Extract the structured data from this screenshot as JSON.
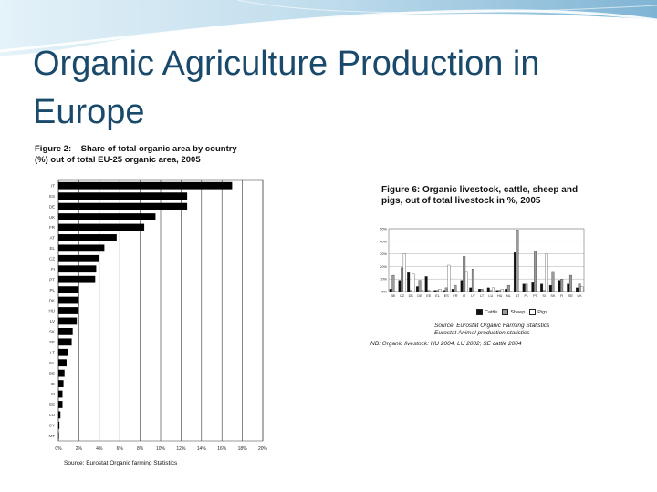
{
  "slide": {
    "title_line1": "Organic Agriculture Production in",
    "title_line2": "Europe"
  },
  "figures": [
    {
      "caption": "Figure 2:    Share of total organic area by country\n(%) out of total EU-25 organic area, 2005",
      "source": "Source: Eurostat Organic farming Statistics"
    },
    {
      "caption": "Figure 6: Organic livestock, cattle, sheep and\npigs, out of total livestock in %, 2005",
      "legend": [
        "Cattle",
        "Sheep",
        "Pigs"
      ],
      "source": "Source: Eurostat Organic Farming Statistics\nEurostat Animal production statistics",
      "note": "NB: Organic livestock: HU 2004, LU 2002; SE cattle 2004"
    }
  ],
  "chart_data": [
    {
      "type": "bar",
      "orientation": "horizontal",
      "title": "Share of total organic area by country (%) out of total EU-25 organic area, 2005",
      "categories": [
        "IT",
        "ES",
        "DE",
        "UK",
        "FR",
        "AT",
        "EL",
        "CZ",
        "FI",
        "PT",
        "PL",
        "DK",
        "HU",
        "LV",
        "SK",
        "SE",
        "LT",
        "NL",
        "BE",
        "IE",
        "SI",
        "EE",
        "LU",
        "CY",
        "MT"
      ],
      "values": [
        17.0,
        12.6,
        12.6,
        9.5,
        8.4,
        5.7,
        4.5,
        4.0,
        3.7,
        3.6,
        2.0,
        2.0,
        1.9,
        1.8,
        1.4,
        1.3,
        0.9,
        0.8,
        0.6,
        0.5,
        0.4,
        0.4,
        0.2,
        0.1,
        0.0
      ],
      "xticks": [
        "0%",
        "2%",
        "4%",
        "6%",
        "8%",
        "10%",
        "12%",
        "14%",
        "16%",
        "18%",
        "20%"
      ],
      "xlim": [
        0,
        20
      ],
      "grid": "vertical"
    },
    {
      "type": "bar",
      "title": "Organic livestock, cattle, sheep and pigs, out of total livestock in %, 2005",
      "categories": [
        "BE",
        "CZ",
        "DK",
        "DE",
        "EE",
        "EL",
        "ES",
        "FR",
        "IT",
        "LV",
        "LT",
        "LU",
        "HU",
        "NL",
        "AT",
        "PL",
        "PT",
        "SI",
        "SK",
        "FI",
        "SE",
        "UK"
      ],
      "series": [
        {
          "name": "Cattle",
          "values": [
            2,
            9,
            15,
            4,
            12,
            1,
            1,
            2,
            9,
            3,
            2,
            3,
            1,
            2,
            31,
            6,
            7,
            6,
            5,
            9,
            6,
            3
          ]
        },
        {
          "name": "Sheep",
          "values": [
            13,
            19,
            1,
            9,
            1,
            1,
            3,
            5,
            28,
            18,
            2,
            1,
            1,
            5,
            49,
            6,
            32,
            1,
            16,
            10,
            13,
            6
          ]
        },
        {
          "name": "Pigs",
          "values": [
            0,
            30,
            14,
            1,
            0,
            2,
            21,
            0,
            16,
            0,
            0,
            3,
            2,
            0,
            0,
            0,
            0,
            30,
            0,
            0,
            0,
            4
          ]
        }
      ],
      "yticks": [
        "0%",
        "10%",
        "20%",
        "30%",
        "40%",
        "50%"
      ],
      "ylim": [
        0,
        50
      ],
      "colors": {
        "Cattle": "#111111",
        "Sheep": "#9a9a9a",
        "Pigs": "#ffffff"
      },
      "grid": "horizontal"
    }
  ]
}
